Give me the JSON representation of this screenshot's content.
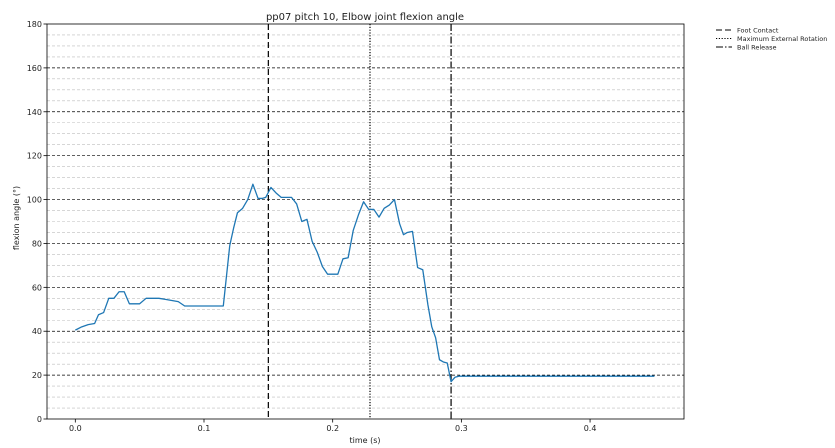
{
  "chart_data": {
    "type": "line",
    "title": "pp07 pitch 10, Elbow joint flexion angle",
    "xlabel": "time (s)",
    "ylabel": "flexion angle (°)",
    "xlim": [
      -0.022,
      0.473
    ],
    "ylim": [
      0,
      180
    ],
    "x_ticks": [
      0.0,
      0.1,
      0.2,
      0.3,
      0.4
    ],
    "x_tick_labels": [
      "0.0",
      "0.1",
      "0.2",
      "0.3",
      "0.4"
    ],
    "y_ticks": [
      0,
      20,
      40,
      60,
      80,
      100,
      120,
      140,
      160,
      180
    ],
    "y_tick_labels": [
      "0",
      "20",
      "40",
      "60",
      "80",
      "100",
      "120",
      "140",
      "160",
      "180"
    ],
    "y_major_grid_step": 20,
    "y_minor_grid_step": 5,
    "grid": true,
    "legend_position": "outside top-right",
    "series": [
      {
        "color": "#1f77b4",
        "x": [
          0.0,
          0.005,
          0.01,
          0.015,
          0.018,
          0.022,
          0.026,
          0.03,
          0.034,
          0.038,
          0.042,
          0.046,
          0.05,
          0.055,
          0.06,
          0.065,
          0.07,
          0.075,
          0.08,
          0.085,
          0.09,
          0.095,
          0.1,
          0.105,
          0.11,
          0.115,
          0.12,
          0.123,
          0.126,
          0.13,
          0.134,
          0.138,
          0.142,
          0.145,
          0.148,
          0.152,
          0.156,
          0.16,
          0.164,
          0.168,
          0.172,
          0.176,
          0.18,
          0.184,
          0.188,
          0.192,
          0.196,
          0.2,
          0.204,
          0.208,
          0.212,
          0.216,
          0.22,
          0.224,
          0.228,
          0.232,
          0.236,
          0.24,
          0.244,
          0.248,
          0.252,
          0.255,
          0.258,
          0.262,
          0.266,
          0.27,
          0.274,
          0.277,
          0.28,
          0.283,
          0.286,
          0.289,
          0.292,
          0.295,
          0.298,
          0.302,
          0.306,
          0.31,
          0.32,
          0.35,
          0.4,
          0.45
        ],
        "y": [
          40.5,
          42,
          43,
          43.5,
          47.5,
          48.5,
          55,
          55,
          58,
          58,
          52.5,
          52.5,
          52.5,
          55,
          55,
          55,
          54.5,
          54,
          53.5,
          51.5,
          51.5,
          51.5,
          51.5,
          51.5,
          51.5,
          51.5,
          79,
          87,
          94,
          96,
          100,
          107,
          100.5,
          100.5,
          101,
          105.5,
          103,
          101,
          101,
          101,
          98,
          90,
          91,
          81,
          76,
          69.5,
          66,
          66,
          66,
          73,
          73.5,
          86,
          93,
          99,
          95.5,
          95.5,
          92,
          96,
          97.5,
          100,
          89,
          84,
          85,
          85.5,
          69,
          68,
          52,
          42,
          37,
          27,
          26,
          25.5,
          17,
          19,
          19.5,
          19.5,
          19.5,
          19.5,
          19.5,
          19.5,
          19.5,
          19.5
        ]
      }
    ],
    "vertical_lines": [
      {
        "name": "Foot Contact",
        "x": 0.15,
        "style": "dashed"
      },
      {
        "name": "Maximum External Rotation",
        "x": 0.229,
        "style": "dotted"
      },
      {
        "name": "Ball Release",
        "x": 0.292,
        "style": "dashdot"
      }
    ]
  }
}
